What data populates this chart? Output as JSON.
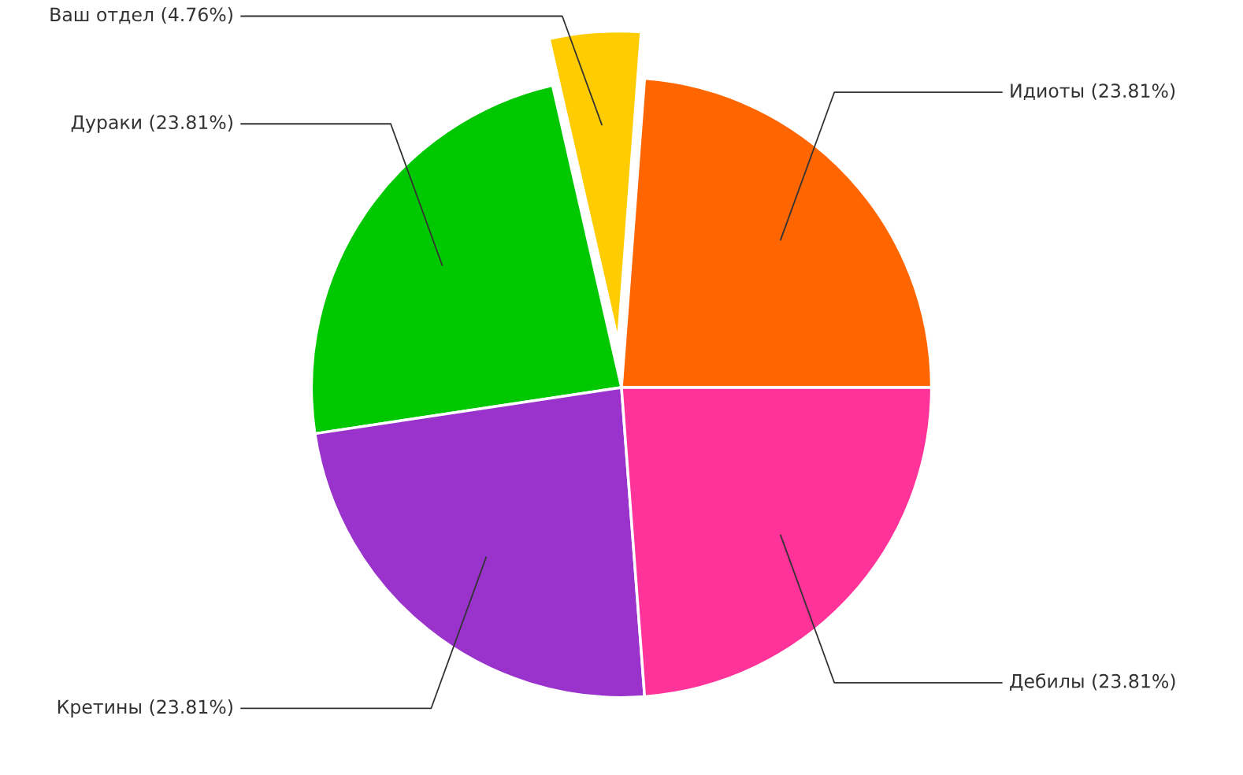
{
  "chart_data": {
    "type": "pie",
    "categories": [
      "Идиоты (23.81%)",
      "Ваш отдел (4.76%)",
      "Дураки (23.81%)",
      "Кретины (23.81%)",
      "Дебилы (23.81%)"
    ],
    "values": [
      23.81,
      4.76,
      23.81,
      23.81,
      23.81
    ],
    "colors": [
      "#ff6600",
      "#ffcc00",
      "#00c800",
      "#9933cc",
      "#ff3399"
    ]
  }
}
